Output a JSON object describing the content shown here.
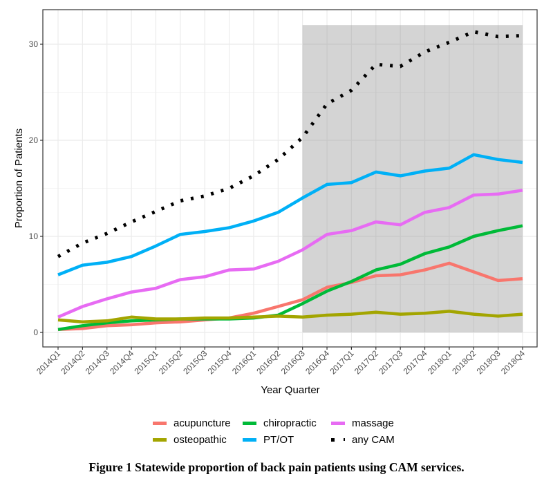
{
  "chart_data": {
    "type": "line",
    "title": "",
    "xlabel": "Year Quarter",
    "ylabel": "Proportion of Patients",
    "ylim": [
      -1.5,
      33
    ],
    "yticks": [
      0,
      10,
      20,
      30
    ],
    "grid": true,
    "legend_position": "bottom",
    "categories": [
      "2014Q1",
      "2014Q2",
      "2014Q3",
      "2014Q4",
      "2015Q1",
      "2015Q2",
      "2015Q3",
      "2015Q4",
      "2016Q1",
      "2016Q2",
      "2016Q3",
      "2016Q4",
      "2017Q1",
      "2017Q2",
      "2017Q3",
      "2017Q4",
      "2018Q1",
      "2018Q2",
      "2018Q3",
      "2018Q4"
    ],
    "shaded_region": {
      "x_start": "2016Q3",
      "x_end": "2018Q4",
      "y_min": 0,
      "y_max": 32,
      "color": "#bfbfbf"
    },
    "series": [
      {
        "name": "acupuncture",
        "color": "#F8766D",
        "style": "solid",
        "values": [
          0.3,
          0.4,
          0.7,
          0.8,
          1.0,
          1.1,
          1.3,
          1.5,
          2.0,
          2.7,
          3.4,
          4.7,
          5.2,
          5.9,
          6.0,
          6.5,
          7.2,
          6.3,
          5.4,
          5.6
        ]
      },
      {
        "name": "chiropractic",
        "color": "#00BA38",
        "style": "solid",
        "values": [
          0.3,
          0.7,
          1.0,
          1.2,
          1.3,
          1.4,
          1.4,
          1.4,
          1.5,
          1.8,
          3.0,
          4.3,
          5.3,
          6.5,
          7.1,
          8.2,
          8.9,
          10.0,
          10.6,
          11.1
        ]
      },
      {
        "name": "massage",
        "color": "#E76BF3",
        "style": "solid",
        "values": [
          1.6,
          2.7,
          3.5,
          4.2,
          4.6,
          5.5,
          5.8,
          6.5,
          6.6,
          7.4,
          8.6,
          10.2,
          10.6,
          11.5,
          11.2,
          12.5,
          13.0,
          14.3,
          14.4,
          14.8
        ]
      },
      {
        "name": "osteopathic",
        "color": "#A3A500",
        "style": "solid",
        "values": [
          1.3,
          1.1,
          1.2,
          1.6,
          1.4,
          1.4,
          1.5,
          1.5,
          1.6,
          1.7,
          1.6,
          1.8,
          1.9,
          2.1,
          1.9,
          2.0,
          2.2,
          1.9,
          1.7,
          1.9
        ]
      },
      {
        "name": "PT/OT",
        "color": "#00B0F6",
        "style": "solid",
        "values": [
          6.0,
          7.0,
          7.3,
          7.9,
          9.0,
          10.2,
          10.5,
          10.9,
          11.6,
          12.5,
          14.0,
          15.4,
          15.6,
          16.7,
          16.3,
          16.8,
          17.1,
          18.5,
          18.0,
          17.7
        ]
      },
      {
        "name": "any CAM",
        "color": "#000000",
        "style": "dotted",
        "values": [
          7.9,
          9.3,
          10.3,
          11.5,
          12.6,
          13.7,
          14.2,
          15.0,
          16.3,
          18.0,
          20.3,
          23.8,
          25.2,
          27.9,
          27.7,
          29.2,
          30.2,
          31.3,
          30.8,
          30.9
        ]
      }
    ]
  },
  "legend": {
    "rows": [
      [
        {
          "label": "acupuncture",
          "color": "#F8766D",
          "style": "solid"
        },
        {
          "label": "chiropractic",
          "color": "#00BA38",
          "style": "solid"
        },
        {
          "label": "massage",
          "color": "#E76BF3",
          "style": "solid"
        }
      ],
      [
        {
          "label": "osteopathic",
          "color": "#A3A500",
          "style": "solid"
        },
        {
          "label": "PT/OT",
          "color": "#00B0F6",
          "style": "solid"
        },
        {
          "label": "any CAM",
          "color": "#000000",
          "style": "dotted"
        }
      ]
    ]
  },
  "caption": "Figure 1 Statewide proportion of back pain patients using CAM services."
}
